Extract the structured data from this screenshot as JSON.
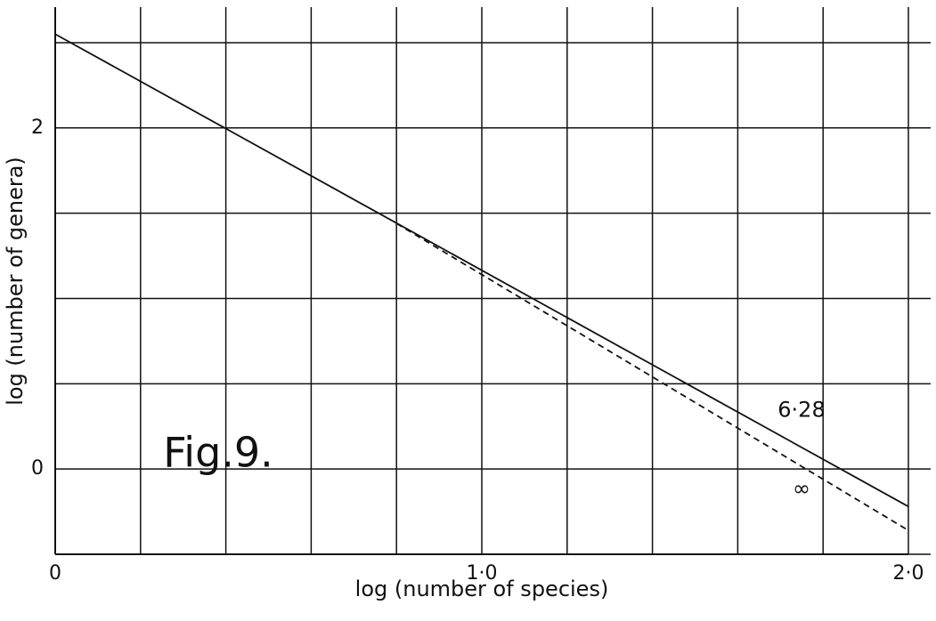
{
  "chart_data": {
    "type": "line",
    "title": "Fig.9.",
    "x_label": "log (number of species)",
    "y_label": "log (number of genera)",
    "xlim": [
      0,
      2.0
    ],
    "ylim": [
      -0.5,
      2.7
    ],
    "xticks": [
      0,
      {
        "value": 1.0,
        "label": "1·0"
      },
      {
        "value": 2.0,
        "label": "2·0"
      }
    ],
    "yticks": [
      0,
      2
    ],
    "xgrid": [
      0.2,
      0.4,
      0.6,
      0.8,
      1.0,
      1.2,
      1.4,
      1.6,
      1.8,
      2.0
    ],
    "ygrid": [
      -0.5,
      0,
      0.5,
      1.0,
      1.5,
      2.0,
      2.5
    ],
    "grid": true,
    "series": [
      {
        "name": "6·28",
        "color": "#111111",
        "dash": false,
        "x": [
          0,
          2.0
        ],
        "values": [
          2.55,
          -0.22
        ]
      },
      {
        "name": "∞",
        "color": "#111111",
        "dash": true,
        "x": [
          0.8,
          2.0
        ],
        "values": [
          1.44,
          -0.36
        ]
      }
    ]
  }
}
